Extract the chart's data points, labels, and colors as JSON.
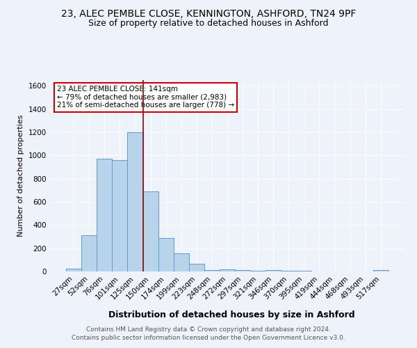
{
  "title": "23, ALEC PEMBLE CLOSE, KENNINGTON, ASHFORD, TN24 9PF",
  "subtitle": "Size of property relative to detached houses in Ashford",
  "xlabel": "Distribution of detached houses by size in Ashford",
  "ylabel": "Number of detached properties",
  "categories": [
    "27sqm",
    "52sqm",
    "76sqm",
    "101sqm",
    "125sqm",
    "150sqm",
    "174sqm",
    "199sqm",
    "223sqm",
    "248sqm",
    "272sqm",
    "297sqm",
    "321sqm",
    "346sqm",
    "370sqm",
    "395sqm",
    "419sqm",
    "444sqm",
    "468sqm",
    "493sqm",
    "517sqm"
  ],
  "values": [
    25,
    310,
    970,
    960,
    1200,
    690,
    290,
    155,
    65,
    10,
    20,
    15,
    5,
    10,
    5,
    5,
    0,
    0,
    0,
    0,
    15
  ],
  "bar_color": "#b8d4ea",
  "bar_edge_color": "#6699cc",
  "vline_color": "#990000",
  "vline_x": 4.5,
  "annotation_text": "23 ALEC PEMBLE CLOSE: 141sqm\n← 79% of detached houses are smaller (2,983)\n21% of semi-detached houses are larger (778) →",
  "annotation_box_color": "white",
  "annotation_box_edge_color": "#cc0000",
  "ylim": [
    0,
    1650
  ],
  "yticks": [
    0,
    200,
    400,
    600,
    800,
    1000,
    1200,
    1400,
    1600
  ],
  "footer_text": "Contains HM Land Registry data © Crown copyright and database right 2024.\nContains public sector information licensed under the Open Government Licence v3.0.",
  "bg_color": "#eef2fa",
  "plot_bg_color": "#eef2fa",
  "title_fontsize": 10,
  "subtitle_fontsize": 9,
  "xlabel_fontsize": 9,
  "ylabel_fontsize": 8,
  "tick_fontsize": 7.5,
  "footer_fontsize": 6.5,
  "annotation_fontsize": 7.5
}
